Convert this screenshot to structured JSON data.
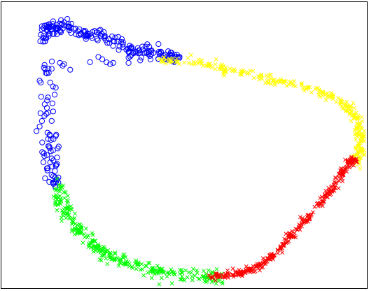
{
  "chart_data": {
    "type": "scatter",
    "title": "",
    "xlabel": "",
    "ylabel": "",
    "xlim": [
      0,
      1
    ],
    "ylim": [
      0,
      1
    ],
    "grid": false,
    "legend": "none",
    "axes_visible": false,
    "series": [
      {
        "color": "#0000ff",
        "marker": "circle",
        "anchors": [
          [
            0.115,
            0.86
          ],
          [
            0.12,
            0.9
          ],
          [
            0.135,
            0.92
          ],
          [
            0.15,
            0.9
          ],
          [
            0.17,
            0.93
          ],
          [
            0.2,
            0.9
          ],
          [
            0.23,
            0.88
          ],
          [
            0.26,
            0.89
          ],
          [
            0.3,
            0.87
          ],
          [
            0.33,
            0.85
          ],
          [
            0.36,
            0.83
          ],
          [
            0.39,
            0.83
          ],
          [
            0.42,
            0.82
          ],
          [
            0.445,
            0.81
          ],
          [
            0.47,
            0.805
          ],
          [
            0.49,
            0.8
          ],
          [
            0.128,
            0.78
          ],
          [
            0.125,
            0.7
          ],
          [
            0.128,
            0.6
          ],
          [
            0.13,
            0.5
          ],
          [
            0.13,
            0.45
          ],
          [
            0.14,
            0.4
          ],
          [
            0.148,
            0.37
          ]
        ],
        "points_per_segment": 13,
        "jitter": 0.01
      },
      {
        "color": "#ffff00",
        "marker": "x",
        "anchors": [
          [
            0.43,
            0.8
          ],
          [
            0.52,
            0.79
          ],
          [
            0.6,
            0.77
          ],
          [
            0.68,
            0.75
          ],
          [
            0.76,
            0.72
          ],
          [
            0.84,
            0.7
          ],
          [
            0.9,
            0.67
          ],
          [
            0.95,
            0.63
          ],
          [
            0.975,
            0.58
          ],
          [
            0.985,
            0.53
          ],
          [
            0.98,
            0.48
          ],
          [
            0.97,
            0.44
          ]
        ],
        "points_per_segment": 28,
        "jitter": 0.008
      },
      {
        "color": "#00ff00",
        "marker": "x",
        "anchors": [
          [
            0.155,
            0.36
          ],
          [
            0.16,
            0.31
          ],
          [
            0.175,
            0.27
          ],
          [
            0.2,
            0.22
          ],
          [
            0.23,
            0.18
          ],
          [
            0.26,
            0.14
          ],
          [
            0.3,
            0.11
          ],
          [
            0.34,
            0.09
          ],
          [
            0.39,
            0.07
          ],
          [
            0.44,
            0.055
          ],
          [
            0.5,
            0.045
          ],
          [
            0.57,
            0.04
          ],
          [
            0.6,
            0.04
          ]
        ],
        "points_per_segment": 27,
        "jitter": 0.011
      },
      {
        "color": "#ff0000",
        "marker": "x",
        "anchors": [
          [
            0.57,
            0.04
          ],
          [
            0.62,
            0.045
          ],
          [
            0.66,
            0.055
          ],
          [
            0.7,
            0.075
          ],
          [
            0.74,
            0.11
          ],
          [
            0.78,
            0.16
          ],
          [
            0.82,
            0.22
          ],
          [
            0.86,
            0.28
          ],
          [
            0.9,
            0.34
          ],
          [
            0.93,
            0.4
          ],
          [
            0.955,
            0.44
          ],
          [
            0.965,
            0.45
          ]
        ],
        "points_per_segment": 32,
        "jitter": 0.0055
      }
    ]
  }
}
